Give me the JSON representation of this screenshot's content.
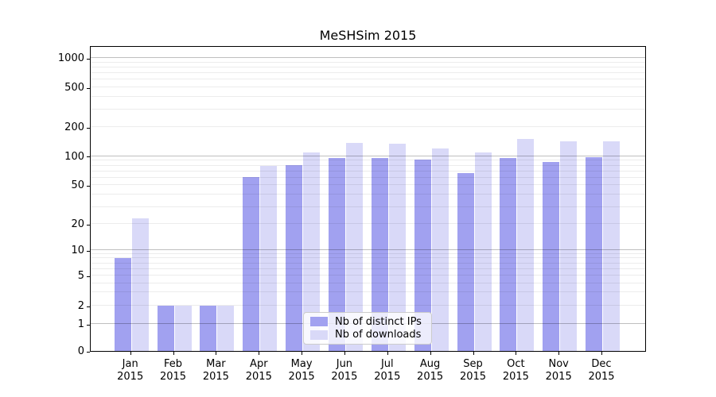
{
  "chart_data": {
    "type": "bar",
    "title": "MeSHSim 2015",
    "categories": [
      "Jan",
      "Feb",
      "Mar",
      "Apr",
      "May",
      "Jun",
      "Jul",
      "Aug",
      "Sep",
      "Oct",
      "Nov",
      "Dec"
    ],
    "year": "2015",
    "series": [
      {
        "name": "Nb of distinct IPs",
        "color": "#a1a1f0",
        "values": [
          8,
          2,
          2,
          61,
          81,
          96,
          95,
          93,
          67,
          96,
          88,
          98
        ]
      },
      {
        "name": "Nb of downloads",
        "color": "#d9d9f8",
        "values": [
          23,
          2,
          2,
          80,
          110,
          137,
          134,
          121,
          110,
          150,
          143,
          143
        ]
      }
    ],
    "xlabel": "",
    "ylabel": "",
    "yscale": "asinh-log",
    "ylim": [
      0,
      1350
    ],
    "yticks": [
      0,
      1,
      2,
      5,
      10,
      20,
      50,
      100,
      200,
      500,
      1000
    ],
    "grid": true,
    "grid_major_at": [
      1,
      10,
      100,
      1000
    ],
    "legend_position": "lower center"
  }
}
